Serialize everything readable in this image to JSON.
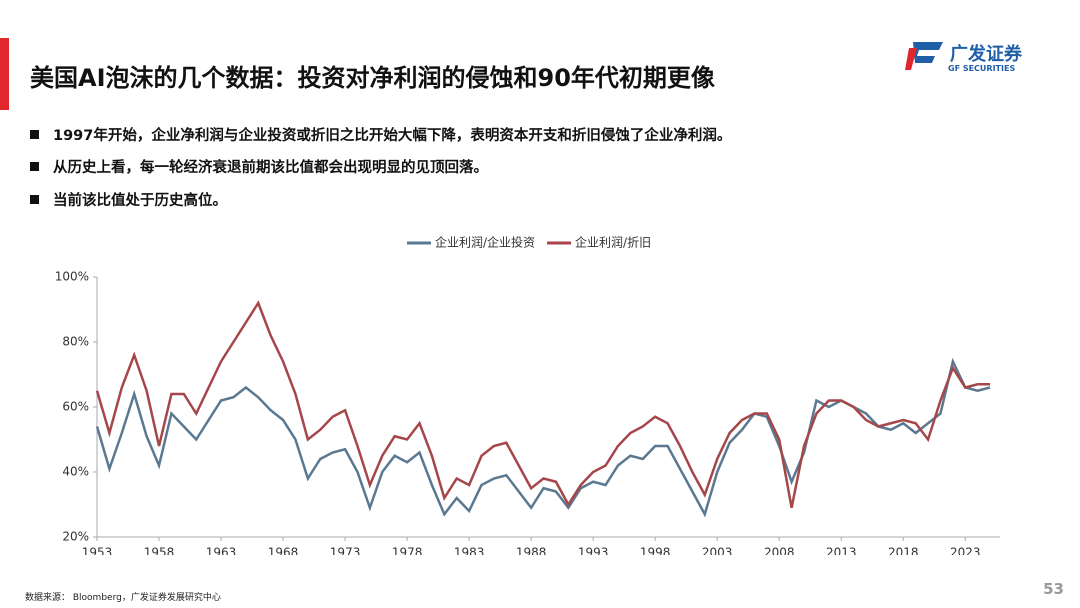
{
  "header": {
    "title": "美国AI泡沫的几个数据：投资对净利润的侵蚀和90年代初期更像",
    "logo_name": "广发证券",
    "logo_subtitle": "GF SECURITIES"
  },
  "bullets": [
    "1997年开始，企业净利润与企业投资或折旧之比开始大幅下降，表明资本开支和折旧侵蚀了企业净利润。",
    "从历史上看，每一轮经济衰退前期该比值都会出现明显的见顶回落。",
    "当前该比值处于历史高位。"
  ],
  "chart_data": {
    "type": "line",
    "x": [
      1953,
      1954,
      1955,
      1956,
      1957,
      1958,
      1959,
      1960,
      1961,
      1962,
      1963,
      1964,
      1965,
      1966,
      1967,
      1968,
      1969,
      1970,
      1971,
      1972,
      1973,
      1974,
      1975,
      1976,
      1977,
      1978,
      1979,
      1980,
      1981,
      1982,
      1983,
      1984,
      1985,
      1986,
      1987,
      1988,
      1989,
      1990,
      1991,
      1992,
      1993,
      1994,
      1995,
      1996,
      1997,
      1998,
      1999,
      2000,
      2001,
      2002,
      2003,
      2004,
      2005,
      2006,
      2007,
      2008,
      2009,
      2010,
      2011,
      2012,
      2013,
      2014,
      2015,
      2016,
      2017,
      2018,
      2019,
      2020,
      2021,
      2022,
      2023,
      2024,
      2025
    ],
    "series": [
      {
        "name": "企业利润/企业投资",
        "color": "#5b7891",
        "values": [
          54,
          41,
          52,
          64,
          51,
          42,
          58,
          54,
          50,
          56,
          62,
          63,
          66,
          63,
          59,
          56,
          50,
          38,
          44,
          46,
          47,
          40,
          29,
          40,
          45,
          43,
          46,
          36,
          27,
          32,
          28,
          36,
          38,
          39,
          34,
          29,
          35,
          34,
          29,
          35,
          37,
          36,
          42,
          45,
          44,
          48,
          48,
          41,
          34,
          27,
          40,
          49,
          53,
          58,
          57,
          48,
          37,
          46,
          62,
          60,
          62,
          60,
          58,
          54,
          53,
          55,
          52,
          55,
          58,
          74,
          66,
          65,
          66
        ]
      },
      {
        "name": "企业利润/折旧",
        "color": "#a5474a",
        "values": [
          65,
          52,
          66,
          76,
          65,
          48,
          64,
          64,
          58,
          66,
          74,
          80,
          86,
          92,
          82,
          74,
          64,
          50,
          53,
          57,
          59,
          48,
          36,
          45,
          51,
          50,
          55,
          45,
          32,
          38,
          36,
          45,
          48,
          49,
          42,
          35,
          38,
          37,
          30,
          36,
          40,
          42,
          48,
          52,
          54,
          57,
          55,
          48,
          40,
          33,
          44,
          52,
          56,
          58,
          58,
          50,
          29,
          48,
          58,
          62,
          62,
          60,
          56,
          54,
          55,
          56,
          55,
          50,
          62,
          72,
          66,
          67,
          67
        ]
      }
    ],
    "xlim": [
      1953,
      2025.8
    ],
    "xticks": [
      1953,
      1958,
      1963,
      1968,
      1973,
      1978,
      1983,
      1988,
      1993,
      1998,
      2003,
      2008,
      2013,
      2018,
      2023
    ],
    "ylim": [
      20,
      100
    ],
    "yticks": [
      {
        "value": 20,
        "label": "20%"
      },
      {
        "value": 40,
        "label": "40%"
      },
      {
        "value": 60,
        "label": "60%"
      },
      {
        "value": 80,
        "label": "80%"
      },
      {
        "value": 100,
        "label": "100%"
      }
    ],
    "legend": "top",
    "grid": false
  },
  "footer": {
    "source": "数据来源： Bloomberg，广发证券发展研究中心",
    "page": "53"
  }
}
